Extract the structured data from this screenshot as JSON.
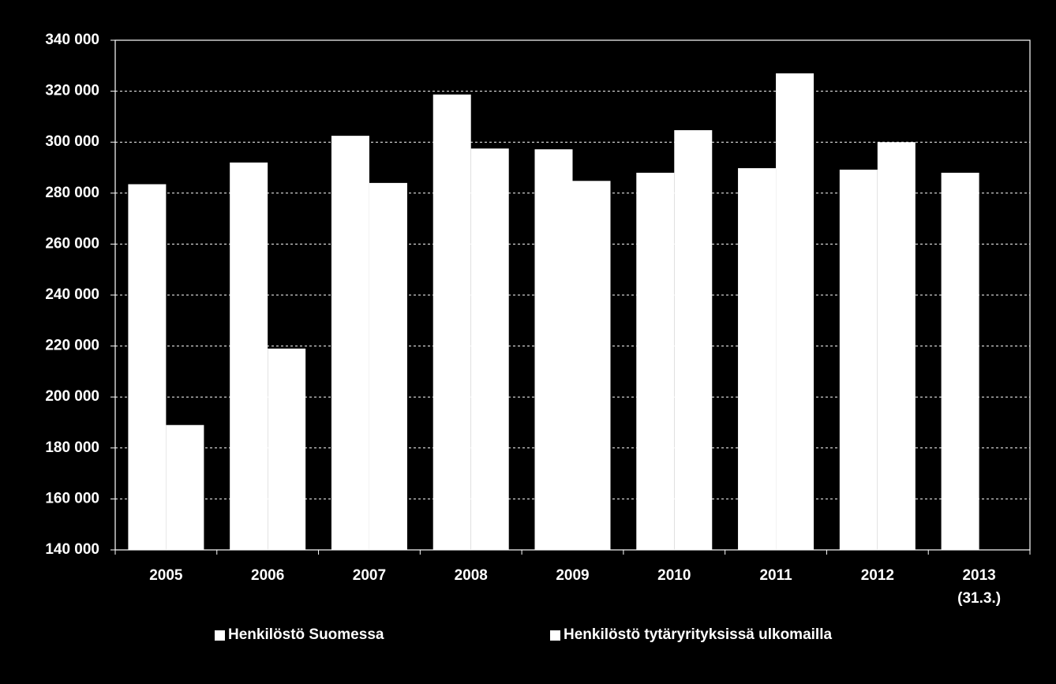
{
  "chart_data": {
    "type": "bar",
    "title": "",
    "xlabel": "",
    "ylabel": "",
    "categories": [
      [
        "2005"
      ],
      [
        "2006"
      ],
      [
        "2007"
      ],
      [
        "2008"
      ],
      [
        "2009"
      ],
      [
        "2010"
      ],
      [
        "2011"
      ],
      [
        "2012"
      ],
      [
        "2013",
        "(31.3.)"
      ]
    ],
    "series": [
      {
        "name": "Henkilöstö Suomessa",
        "values": [
          283500,
          292000,
          302500,
          318700,
          297200,
          288000,
          289800,
          289200,
          288000
        ]
      },
      {
        "name": "Henkilöstö tytäryrityksissä ulkomailla",
        "values": [
          189000,
          219000,
          284000,
          297500,
          284800,
          304700,
          327000,
          300000,
          null
        ]
      }
    ],
    "ylim": [
      140000,
      340000
    ],
    "ytick_step": 20000,
    "ytick_labels": [
      "140 000",
      "160 000",
      "180 000",
      "200 000",
      "220 000",
      "240 000",
      "260 000",
      "280 000",
      "300 000",
      "320 000",
      "340 000"
    ],
    "grid": "horizontal-dashed",
    "legend_position": "bottom",
    "colors": {
      "background": "#000000",
      "bars": "#ffffff",
      "grid": "#ffffff",
      "axis": "#ffffff",
      "text": "#ffffff"
    }
  }
}
